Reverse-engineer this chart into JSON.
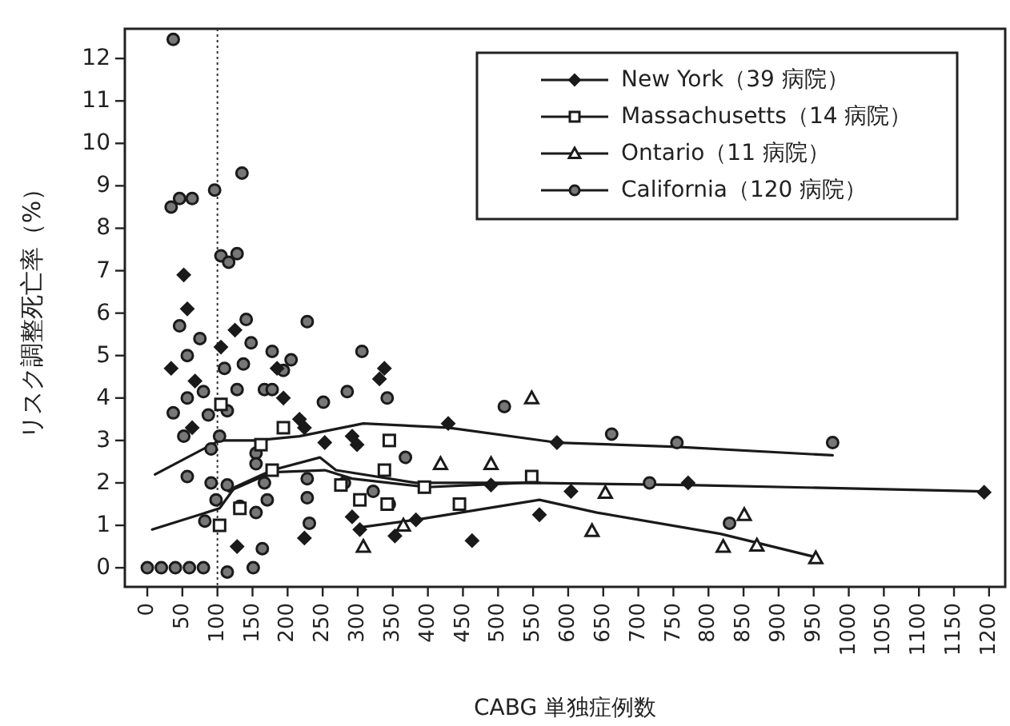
{
  "chart_data": {
    "type": "scatter",
    "xlabel": "CABG 単独症例数",
    "ylabel": "リスク調整死亡率（%）",
    "xlim": [
      -32,
      1223
    ],
    "ylim": [
      -0.45,
      12.7
    ],
    "xticks": [
      0,
      50,
      100,
      150,
      200,
      250,
      300,
      350,
      400,
      450,
      500,
      550,
      600,
      650,
      700,
      750,
      800,
      850,
      900,
      950,
      1000,
      1050,
      1100,
      1150,
      1200
    ],
    "yticks": [
      0,
      1,
      2,
      3,
      4,
      5,
      6,
      7,
      8,
      9,
      10,
      11,
      12
    ],
    "legend": "top right",
    "grid": false,
    "ref_lines": [
      {
        "axis": "x",
        "value": 100,
        "line_style": "dotted",
        "color": "#333333"
      }
    ],
    "series": [
      {
        "name": "New York（39 病院）",
        "marker": "diamond",
        "color": "#1a1a1a",
        "x": [
          34,
          52,
          57,
          68,
          125,
          64,
          105,
          185,
          194,
          338,
          331,
          217,
          224,
          253,
          292,
          299,
          429,
          292,
          303,
          353,
          463,
          224,
          128,
          383,
          559,
          490,
          584,
          604,
          771,
          1193
        ],
        "values": [
          4.7,
          6.9,
          6.1,
          4.4,
          5.6,
          3.3,
          5.2,
          4.7,
          4.0,
          4.7,
          4.45,
          3.5,
          3.3,
          2.95,
          3.1,
          2.9,
          3.4,
          1.2,
          0.9,
          0.75,
          0.64,
          0.7,
          0.5,
          1.13,
          1.25,
          1.95,
          2.95,
          1.8,
          2.0,
          1.78
        ]
      },
      {
        "name": "Massachusetts（14 病院）",
        "marker": "square",
        "color": "#1a1a1a",
        "x": [
          105,
          162,
          194,
          345,
          338,
          342,
          395,
          445,
          548,
          303,
          132,
          103,
          276,
          178
        ],
        "values": [
          3.85,
          2.9,
          3.3,
          3.0,
          2.3,
          1.5,
          1.9,
          1.5,
          2.15,
          1.6,
          1.4,
          1.0,
          1.95,
          2.3
        ]
      },
      {
        "name": "Ontario（11 病院）",
        "marker": "triangle",
        "color": "#1a1a1a",
        "x": [
          308,
          365,
          418,
          490,
          548,
          634,
          653,
          821,
          851,
          869,
          953
        ],
        "values": [
          0.5,
          1.0,
          2.45,
          2.45,
          4.0,
          0.87,
          1.77,
          0.5,
          1.25,
          0.53,
          0.23
        ]
      },
      {
        "name": "California（120 病院）",
        "marker": "circle",
        "color": "#1a1a1a",
        "x": [
          37,
          34,
          46,
          64,
          96,
          135,
          105,
          116,
          128,
          46,
          75,
          57,
          141,
          148,
          228,
          306,
          110,
          137,
          178,
          194,
          205,
          37,
          57,
          80,
          87,
          114,
          128,
          167,
          178,
          251,
          285,
          342,
          52,
          91,
          103,
          155,
          57,
          91,
          114,
          155,
          167,
          228,
          228,
          231,
          98,
          132,
          155,
          171,
          82,
          368,
          345,
          281,
          322,
          164,
          151,
          114,
          0,
          20,
          40,
          60,
          80,
          662,
          755,
          977,
          716,
          830,
          509
        ],
        "values": [
          12.45,
          8.5,
          8.7,
          8.7,
          8.9,
          9.3,
          7.35,
          7.2,
          7.4,
          5.7,
          5.4,
          5.0,
          5.85,
          5.3,
          5.8,
          5.1,
          4.7,
          4.8,
          5.1,
          4.65,
          4.9,
          3.65,
          4.0,
          4.15,
          3.6,
          3.7,
          4.2,
          4.2,
          4.2,
          3.9,
          4.15,
          4.0,
          3.1,
          2.8,
          3.1,
          2.7,
          2.15,
          2.0,
          1.95,
          2.45,
          2.0,
          2.1,
          1.65,
          1.05,
          1.6,
          1.45,
          1.3,
          1.6,
          1.1,
          2.6,
          1.5,
          2.0,
          1.8,
          0.45,
          0.0,
          -0.1,
          0,
          0,
          0,
          0,
          0,
          3.15,
          2.95,
          2.95,
          2.0,
          1.05,
          3.8
        ]
      },
      {
        "type": "line",
        "color": "#1a1a1a",
        "x": [
          7,
          103,
          125,
          178,
          246,
          269,
          383,
          543,
          771,
          1193
        ],
        "values": [
          0.9,
          1.4,
          1.9,
          2.3,
          2.6,
          2.3,
          2.0,
          2.0,
          1.95,
          1.8
        ]
      },
      {
        "type": "line",
        "color": "#1a1a1a",
        "x": [
          116,
          178,
          253,
          292,
          399,
          536,
          560
        ],
        "values": [
          1.8,
          2.25,
          2.3,
          2.1,
          1.9,
          2.0,
          2.0
        ]
      },
      {
        "type": "line",
        "color": "#1a1a1a",
        "x": [
          303,
          383,
          559,
          641,
          817,
          953
        ],
        "values": [
          0.95,
          1.13,
          1.6,
          1.3,
          0.8,
          0.25
        ]
      },
      {
        "type": "line",
        "color": "#1a1a1a",
        "x": [
          11,
          103,
          155,
          217,
          308,
          429,
          584,
          755,
          977
        ],
        "values": [
          2.2,
          3.0,
          3.0,
          3.1,
          3.4,
          3.3,
          2.95,
          2.85,
          2.65
        ]
      }
    ]
  }
}
